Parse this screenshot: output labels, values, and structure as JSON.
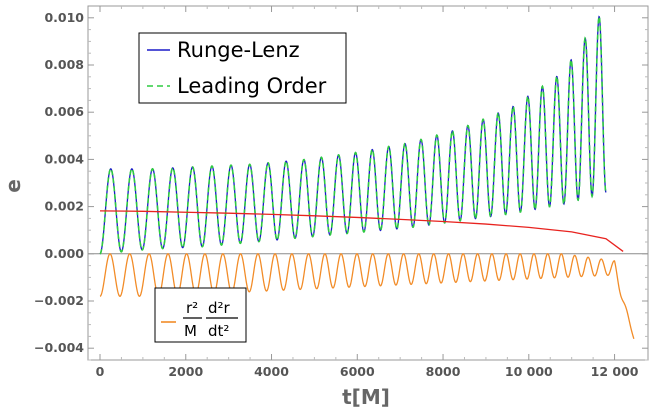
{
  "chart_data": {
    "type": "line",
    "xlabel": "t[M]",
    "ylabel": "e",
    "xlim": [
      0,
      12500
    ],
    "ylim": [
      -0.0045,
      0.0105
    ],
    "x_ticks": [
      0,
      2000,
      4000,
      6000,
      8000,
      10000,
      12000
    ],
    "x_tick_labels": [
      "0",
      "2000",
      "4000",
      "6000",
      "8000",
      "10 000",
      "12 000"
    ],
    "y_ticks": [
      -0.004,
      -0.002,
      0.0,
      0.002,
      0.004,
      0.006,
      0.008,
      0.01
    ],
    "y_tick_labels": [
      "-0.004",
      "-0.002",
      "0.000",
      "0.002",
      "0.004",
      "0.006",
      "0.008",
      "0.010"
    ],
    "legend_top": {
      "placement": "top-left",
      "entries": [
        "Runge-Lenz",
        "Leading Order"
      ]
    },
    "legend_bottom": {
      "placement": "bottom-left",
      "formula": {
        "num1": "r²",
        "den1": "M",
        "num2": "d²r",
        "den2": "dt²"
      }
    },
    "series": [
      {
        "name": "Runge-Lenz",
        "color": "#1b1bc8",
        "style": "solid",
        "x_range": [
          0,
          11800
        ],
        "envelope_peak": [
          0.0036,
          0.0036,
          0.0037,
          0.0038,
          0.004,
          0.0043,
          0.0047,
          0.0053,
          0.0062,
          0.0077,
          0.0105
        ],
        "envelope_trough": [
          0.0,
          0.0002,
          0.0003,
          0.0005,
          0.0007,
          0.0009,
          0.0011,
          0.0014,
          0.0017,
          0.0021,
          0.0026
        ],
        "envelope_x": [
          0,
          1200,
          2400,
          3600,
          4800,
          6000,
          7200,
          8400,
          9600,
          10800,
          11800
        ],
        "oscillations": 30
      },
      {
        "name": "Leading Order",
        "color": "#2ecc40",
        "style": "dashed",
        "x_range": [
          0,
          11800
        ],
        "envelope_peak": [
          0.0036,
          0.0036,
          0.0037,
          0.0038,
          0.004,
          0.0043,
          0.0047,
          0.0053,
          0.0062,
          0.0077,
          0.0105
        ],
        "envelope_trough": [
          0.0,
          0.0002,
          0.0003,
          0.0005,
          0.0007,
          0.0009,
          0.0011,
          0.0014,
          0.0017,
          0.0021,
          0.0026
        ],
        "envelope_x": [
          0,
          1200,
          2400,
          3600,
          4800,
          6000,
          7200,
          8400,
          9600,
          10800,
          11800
        ],
        "oscillations": 30
      },
      {
        "name": "r² d²r / (M dt²)",
        "color": "#f28c28",
        "style": "solid",
        "x_range": [
          0,
          12450
        ],
        "envelope_upper": [
          0.0,
          0.0,
          0.0,
          0.0,
          0.0,
          0.0,
          0.0,
          0.0,
          0.0,
          0.0,
          -0.0003,
          -0.0036
        ],
        "envelope_lower": [
          -0.0018,
          -0.0018,
          -0.0017,
          -0.0016,
          -0.0015,
          -0.0014,
          -0.0013,
          -0.0012,
          -0.0011,
          -0.001,
          -0.0009,
          -0.0036
        ],
        "envelope_x": [
          0,
          1200,
          2400,
          3600,
          4800,
          6000,
          7200,
          8400,
          9600,
          10800,
          12000,
          12450
        ],
        "oscillations": 34
      },
      {
        "name": "red envelope",
        "color": "#e8231f",
        "style": "solid",
        "x": [
          0,
          1000,
          2000,
          3000,
          4000,
          5000,
          6000,
          7000,
          8000,
          9000,
          10000,
          11000,
          11800,
          12200
        ],
        "y": [
          0.00182,
          0.0018,
          0.00176,
          0.00172,
          0.00167,
          0.00161,
          0.00154,
          0.00146,
          0.00137,
          0.00126,
          0.00112,
          0.00093,
          0.00064,
          0.0001
        ]
      }
    ],
    "zero_line_color": "#8c8c8c"
  }
}
